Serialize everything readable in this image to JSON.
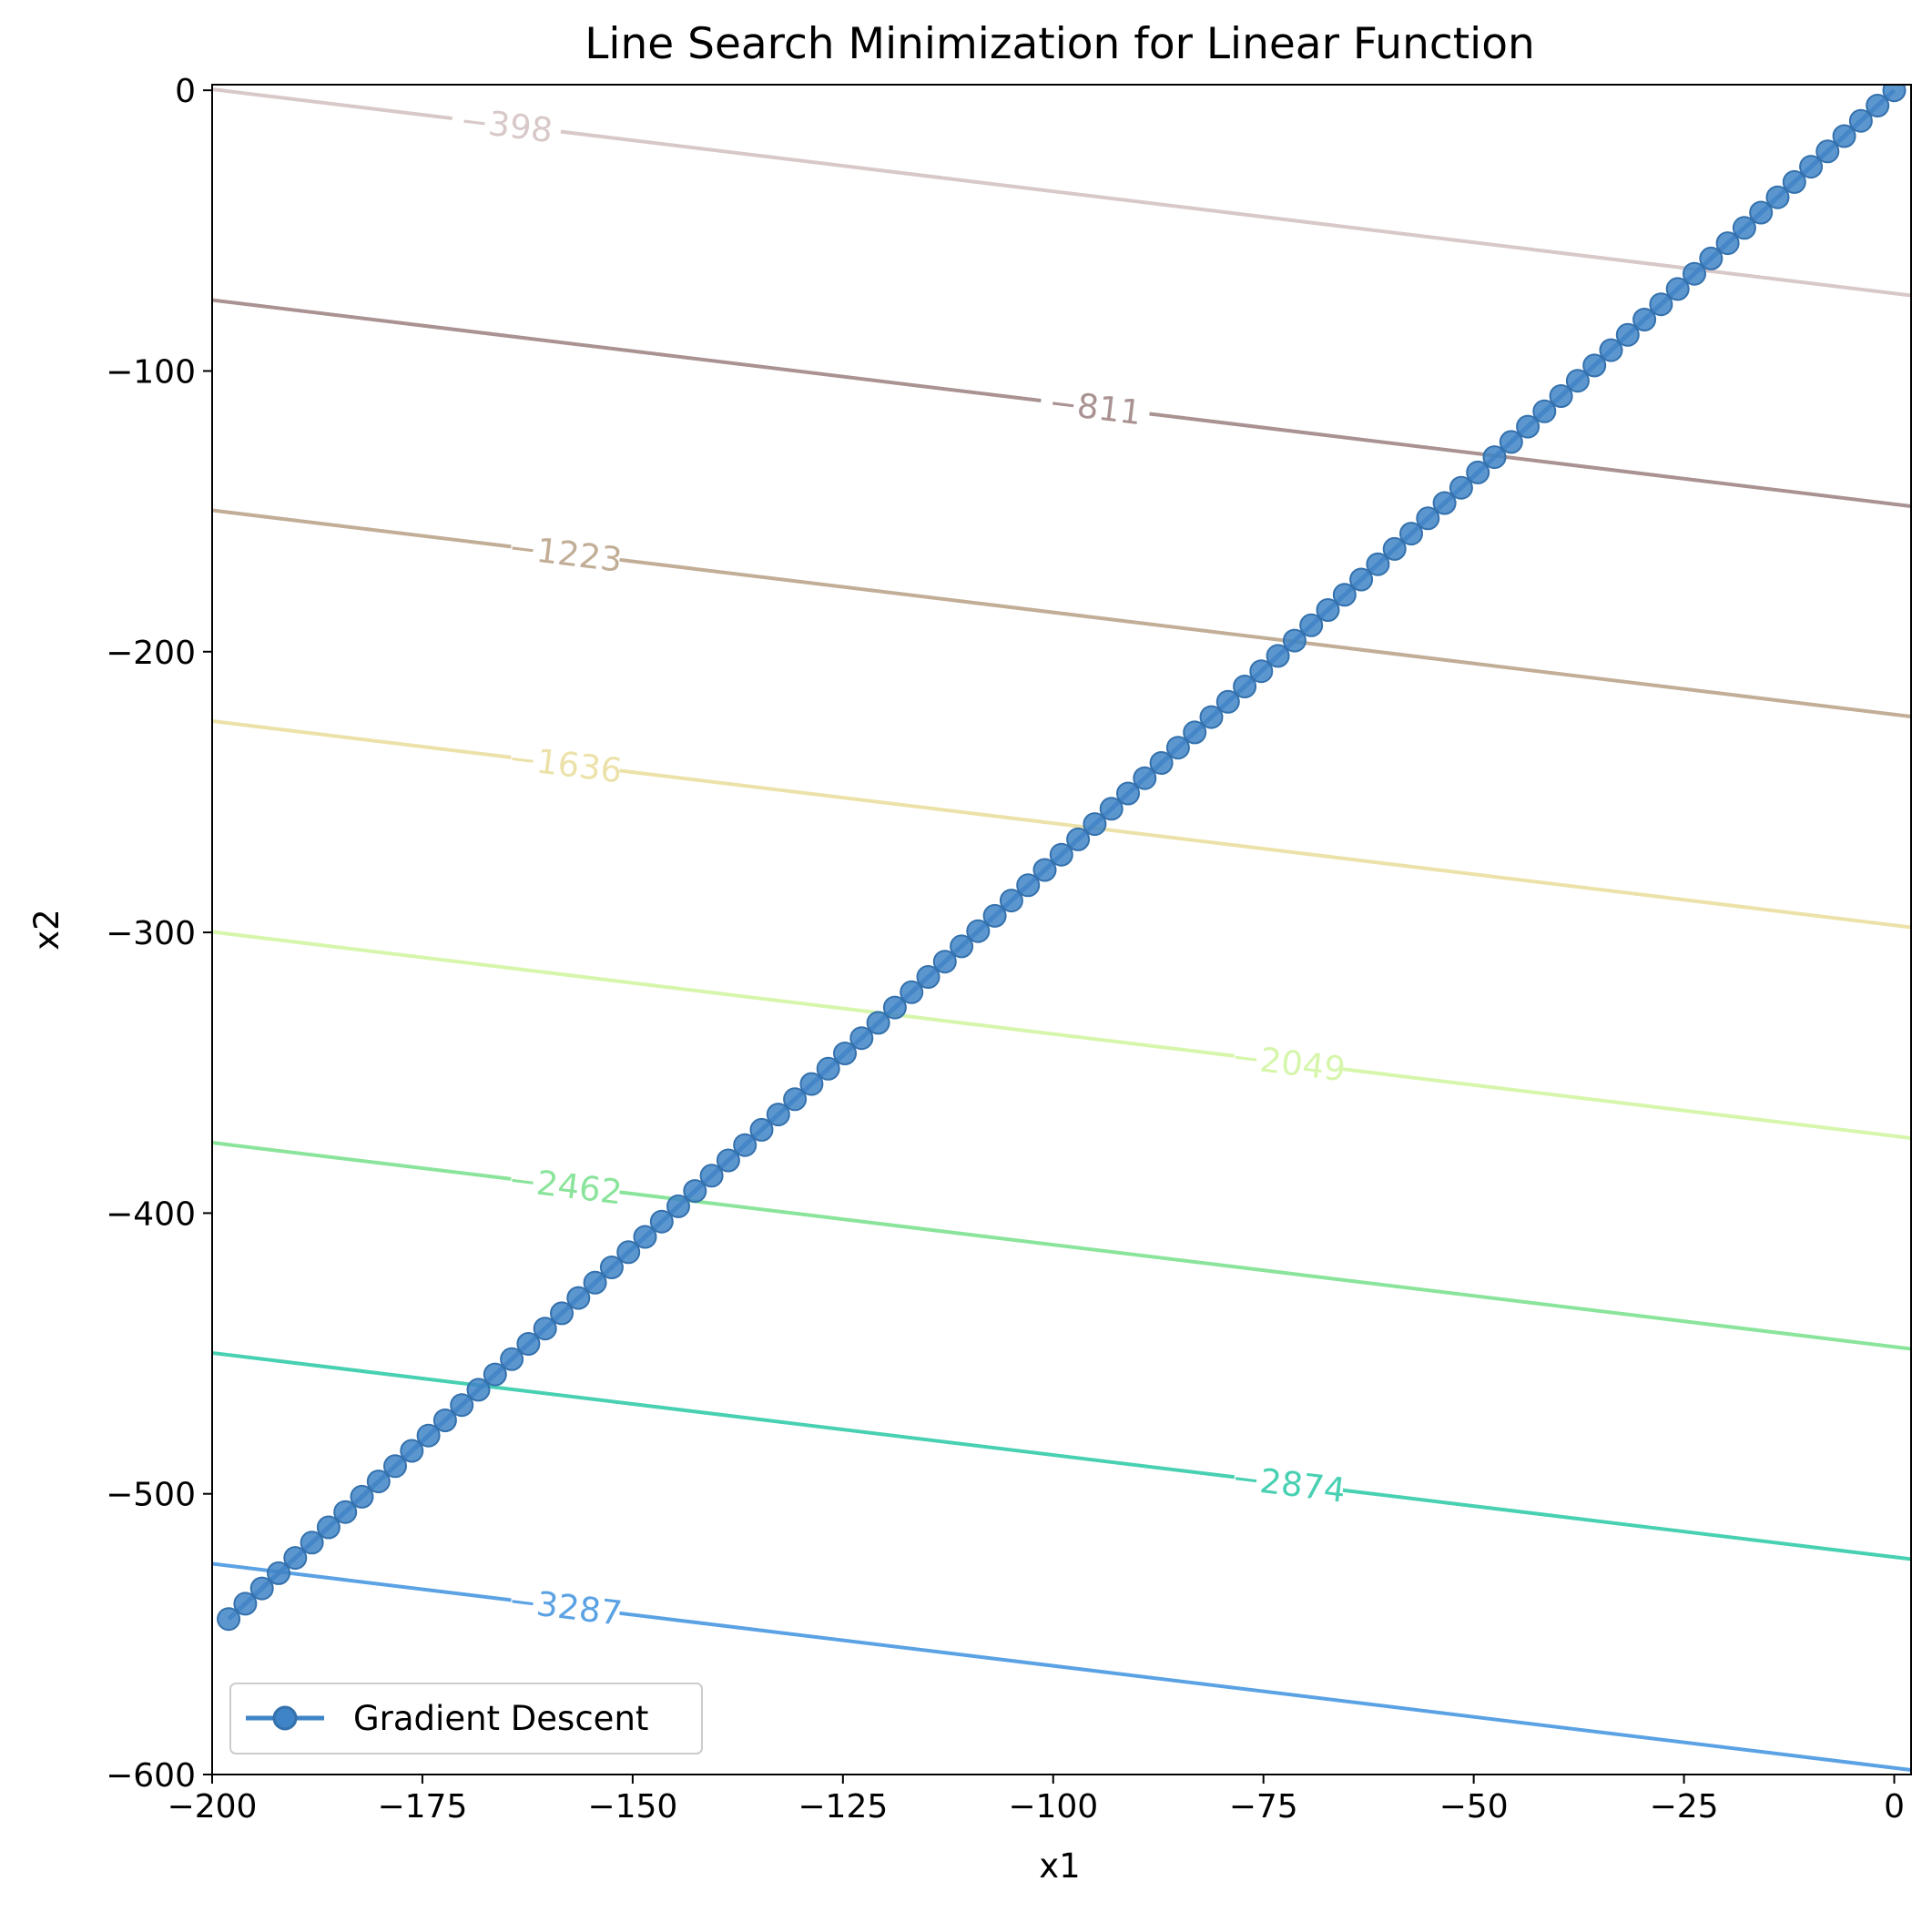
{
  "chart_data": {
    "type": "line",
    "title": "Line Search Minimization for Linear Function",
    "xlabel": "x1",
    "ylabel": "x2",
    "xlim": [
      -200,
      2
    ],
    "ylim": [
      -600,
      2
    ],
    "grid": false,
    "legend_position": "lower-left",
    "x_ticks": [
      -200,
      -175,
      -150,
      -125,
      -100,
      -75,
      -50,
      -25,
      0
    ],
    "x_tick_labels": [
      "−200",
      "−175",
      "−150",
      "−125",
      "−100",
      "−75",
      "−50",
      "−25",
      "0"
    ],
    "y_ticks": [
      0,
      -100,
      -200,
      -300,
      -400,
      -500,
      -600
    ],
    "y_tick_labels": [
      "0",
      "−100",
      "−200",
      "−300",
      "−400",
      "−500",
      "−600"
    ],
    "contours": {
      "function_coefficients": [
        2.0,
        5.5
      ],
      "levels": [
        {
          "level": -398,
          "label": "−398",
          "color": "#d8c8c8",
          "label_x": -165
        },
        {
          "level": -811,
          "label": "−811",
          "color": "#a99291",
          "label_x": -95
        },
        {
          "level": -1223,
          "label": "−1223",
          "color": "#c2ad96",
          "label_x": -158
        },
        {
          "level": -1636,
          "label": "−1636",
          "color": "#ece2a9",
          "label_x": -158
        },
        {
          "level": -2049,
          "label": "−2049",
          "color": "#d6f6ab",
          "label_x": -72
        },
        {
          "level": -2462,
          "label": "−2462",
          "color": "#8ae49b",
          "label_x": -158
        },
        {
          "level": -2874,
          "label": "−2874",
          "color": "#48d0b2",
          "label_x": -72
        },
        {
          "level": -3287,
          "label": "−3287",
          "color": "#5aa2e4",
          "label_x": -158
        }
      ]
    },
    "series": [
      {
        "name": "Gradient Descent",
        "color": "#3f84c6",
        "marker": "circle",
        "start": [
          0,
          0
        ],
        "step": [
          -1.9804,
          -5.4461
        ],
        "num_points": 101
      }
    ]
  }
}
